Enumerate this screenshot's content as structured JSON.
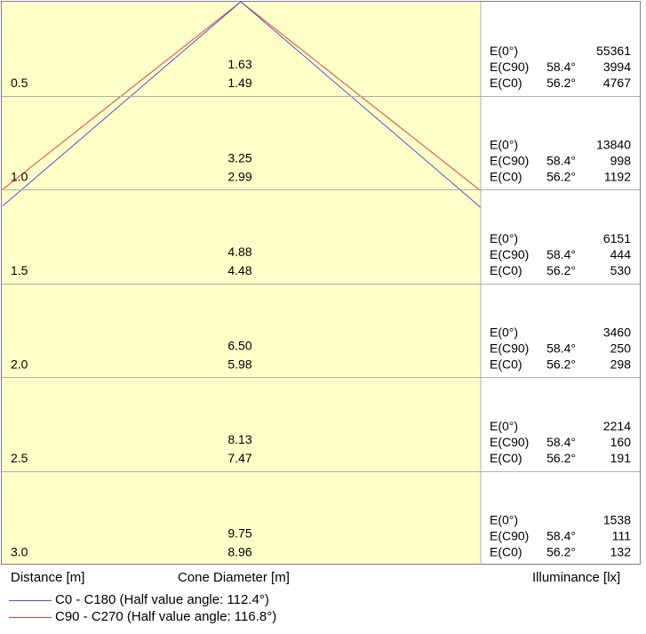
{
  "chart_data": {
    "type": "cone diagram",
    "distance_unit_label": "Distance [m]",
    "diameter_label": "Cone Diameter [m]",
    "illuminance_label": "Illuminance [lx]",
    "series": [
      {
        "name": "C0 - C180 (Half value angle: 112.4°)",
        "color": "#5050e0",
        "half_angle_deg": 112.4
      },
      {
        "name": "C90 - C270 (Half value angle: 116.8°)",
        "color": "#e04040",
        "half_angle_deg": 116.8
      }
    ],
    "max_distance": 3.0,
    "rows": [
      {
        "distance": "0.5",
        "diam_c90": "1.63",
        "diam_c0": "1.49",
        "e0": "55361",
        "ec90_angle": "58.4°",
        "ec90": "3994",
        "ec0_angle": "56.2°",
        "ec0": "4767"
      },
      {
        "distance": "1.0",
        "diam_c90": "3.25",
        "diam_c0": "2.99",
        "e0": "13840",
        "ec90_angle": "58.4°",
        "ec90": "998",
        "ec0_angle": "56.2°",
        "ec0": "1192"
      },
      {
        "distance": "1.5",
        "diam_c90": "4.88",
        "diam_c0": "4.48",
        "e0": "6151",
        "ec90_angle": "58.4°",
        "ec90": "444",
        "ec0_angle": "56.2°",
        "ec0": "530"
      },
      {
        "distance": "2.0",
        "diam_c90": "6.50",
        "diam_c0": "5.98",
        "e0": "3460",
        "ec90_angle": "58.4°",
        "ec90": "250",
        "ec0_angle": "56.2°",
        "ec0": "298"
      },
      {
        "distance": "2.5",
        "diam_c90": "8.13",
        "diam_c0": "7.47",
        "e0": "2214",
        "ec90_angle": "58.4°",
        "ec90": "160",
        "ec0_angle": "56.2°",
        "ec0": "191"
      },
      {
        "distance": "3.0",
        "diam_c90": "9.75",
        "diam_c0": "8.96",
        "e0": "1538",
        "ec90_angle": "58.4°",
        "ec90": "111",
        "ec0_angle": "56.2°",
        "ec0": "132"
      }
    ],
    "labels": {
      "e0": "E(0°)",
      "ec90": "E(C90)",
      "ec0": "E(C0)"
    },
    "fill_color": "#ffffc8",
    "grid_color": "#b0b0b0",
    "border_color": "#808080"
  }
}
